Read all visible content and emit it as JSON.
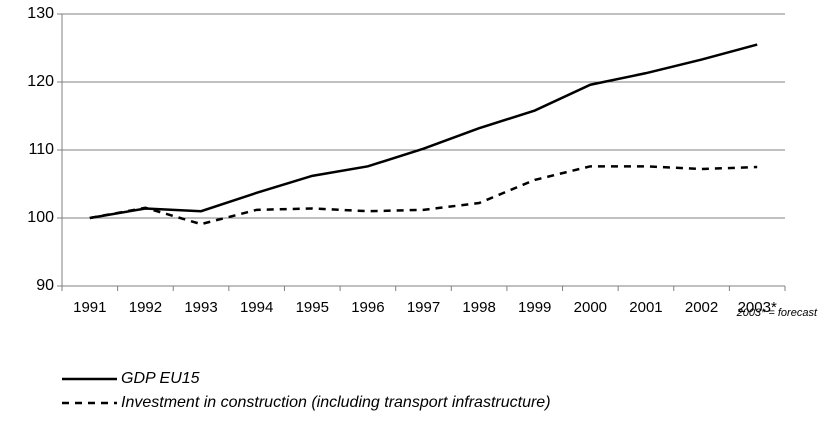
{
  "chart_data": {
    "type": "line",
    "categories": [
      "1991",
      "1992",
      "1993",
      "1994",
      "1995",
      "1996",
      "1997",
      "1998",
      "1999",
      "2000",
      "2001",
      "2002",
      "2003*"
    ],
    "series": [
      {
        "name": "GDP EU15",
        "color": "#000000",
        "line_style": "solid",
        "values": [
          100,
          101.4,
          101,
          103.7,
          106.2,
          107.6,
          110.2,
          113.2,
          115.8,
          119.6,
          121.3,
          123.3,
          125.5
        ]
      },
      {
        "name": "Investment in construction (including transport infrastructure)",
        "color": "#000000",
        "line_style": "dashed",
        "values": [
          100,
          101.5,
          99.1,
          101.2,
          101.4,
          101.0,
          101.2,
          102.2,
          105.6,
          107.6,
          107.6,
          107.2,
          107.5
        ]
      }
    ],
    "ylim": [
      90,
      130
    ],
    "yticks": [
      90,
      100,
      110,
      120,
      130
    ],
    "grid": true,
    "annotation": "2003* = forecast",
    "legend": "bottom-left"
  }
}
